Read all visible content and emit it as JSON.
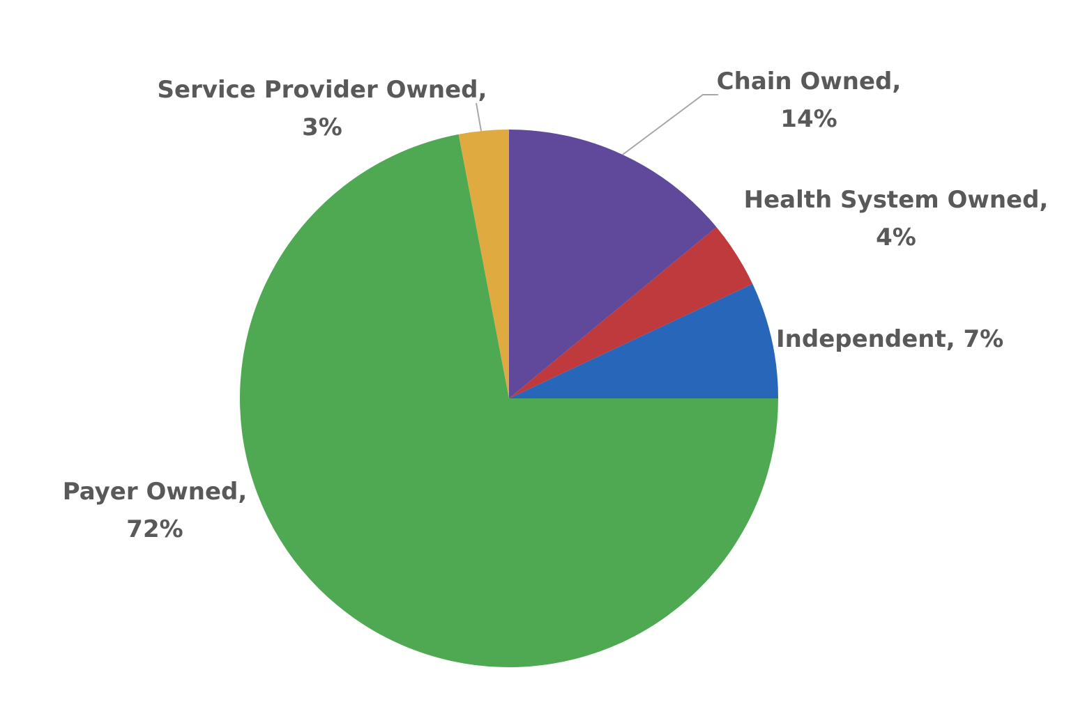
{
  "chart_data": {
    "type": "pie",
    "title": "",
    "start_angle_deg": 0,
    "direction": "clockwise",
    "slices": [
      {
        "label": "Chain Owned",
        "value": 14,
        "value_label": "14%",
        "color": "#60499B"
      },
      {
        "label": "Health System Owned",
        "value": 4,
        "value_label": "4%",
        "color": "#BE3A3D"
      },
      {
        "label": "Independent",
        "value": 7,
        "value_label": "7%",
        "color": "#2766B9"
      },
      {
        "label": "Payer Owned",
        "value": 72,
        "value_label": "72%",
        "color": "#4FA953"
      },
      {
        "label": "Service Provider Owned",
        "value": 3,
        "value_label": "3%",
        "color": "#DFAA40"
      }
    ],
    "labels": [
      {
        "lines": [
          "Chain Owned,",
          "14%"
        ]
      },
      {
        "lines": [
          "Health System Owned,",
          "4%"
        ]
      },
      {
        "lines": [
          "Independent, 7%"
        ]
      },
      {
        "lines": [
          "Payer Owned,",
          "72%"
        ]
      },
      {
        "lines": [
          "Service Provider Owned,",
          "3%"
        ]
      }
    ],
    "legend": "none",
    "label_color": "#595959",
    "leader_color": "#A6A6A6"
  }
}
